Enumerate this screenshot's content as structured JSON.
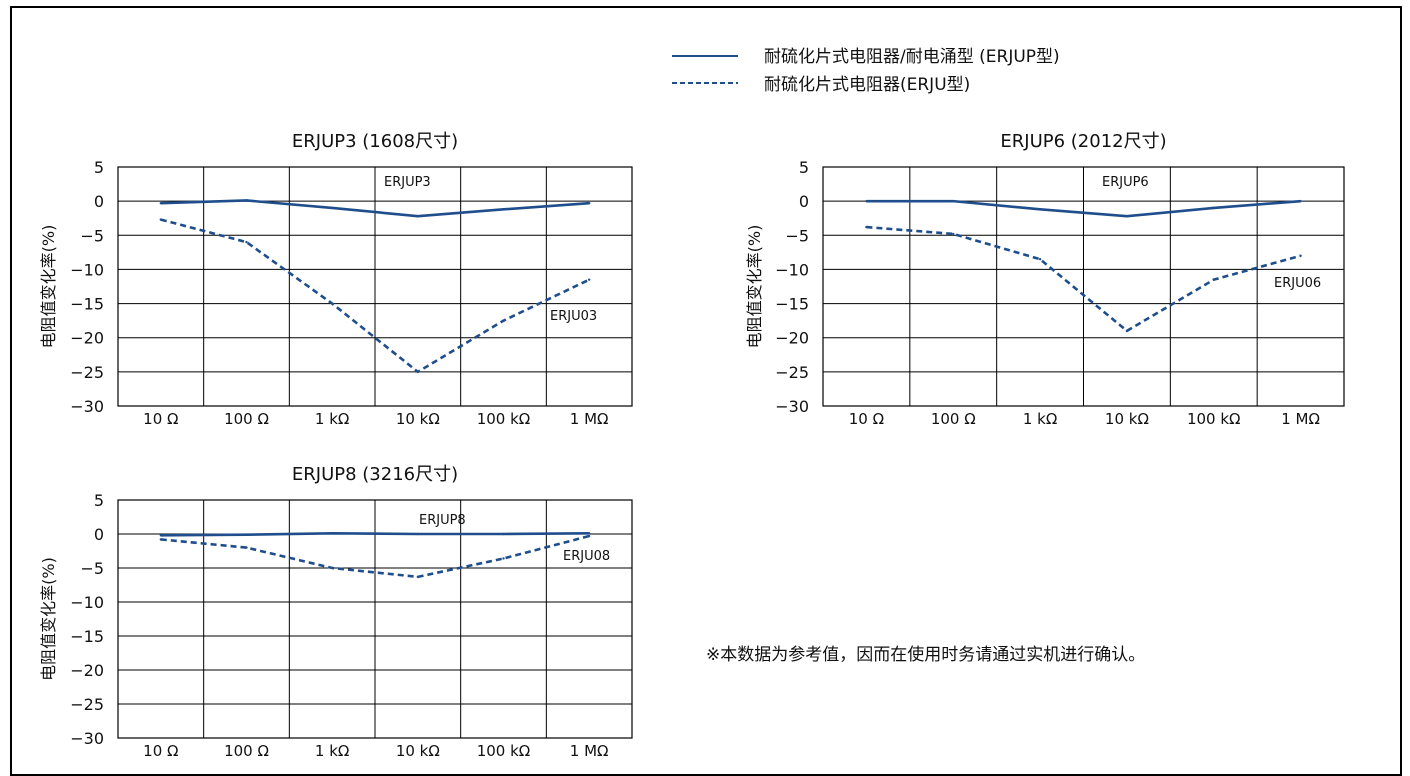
{
  "legend": {
    "solid_label": "耐硫化片式电阻器/耐电涌型 (ERJUP型)",
    "dashed_label": "耐硫化片式电阻器(ERJU型)"
  },
  "note": "※本数据为参考值，因而在使用时务请通过实机进行确认。",
  "colors": {
    "line": "#1f4e8c",
    "grid": "#000000"
  },
  "chart_data": [
    {
      "type": "line",
      "title": "ERJUP3 (1608尺寸)",
      "ylabel": "电阻值变化率(%)",
      "xlabel": "",
      "categories": [
        "10 Ω",
        "100 Ω",
        "1 kΩ",
        "10 kΩ",
        "100 kΩ",
        "1 MΩ"
      ],
      "yticks": [
        "5",
        "0",
        "−5",
        "−10",
        "−15",
        "−20",
        "−25",
        "−30"
      ],
      "ylim": [
        -30,
        5
      ],
      "series": [
        {
          "name": "ERJUP3",
          "style": "solid",
          "values": [
            -0.3,
            0.1,
            -1.0,
            -2.2,
            -1.2,
            -0.3
          ]
        },
        {
          "name": "ERJU03",
          "style": "dashed",
          "values": [
            -2.7,
            -6.0,
            -15.0,
            -25.0,
            -17.5,
            -11.5
          ]
        }
      ]
    },
    {
      "type": "line",
      "title": "ERJUP6 (2012尺寸)",
      "ylabel": "电阻值变化率(%)",
      "xlabel": "",
      "categories": [
        "10 Ω",
        "100 Ω",
        "1 kΩ",
        "10 kΩ",
        "100 kΩ",
        "1 MΩ"
      ],
      "yticks": [
        "5",
        "0",
        "−5",
        "−10",
        "−15",
        "−20",
        "−25",
        "−30"
      ],
      "ylim": [
        -30,
        5
      ],
      "series": [
        {
          "name": "ERJUP6",
          "style": "solid",
          "values": [
            0.0,
            0.0,
            -1.2,
            -2.2,
            -1.0,
            0.0
          ]
        },
        {
          "name": "ERJU06",
          "style": "dashed",
          "values": [
            -3.8,
            -4.8,
            -8.5,
            -19.0,
            -11.5,
            -8.0
          ]
        }
      ]
    },
    {
      "type": "line",
      "title": "ERJUP8 (3216尺寸)",
      "ylabel": "电阻值变化率(%)",
      "xlabel": "",
      "categories": [
        "10 Ω",
        "100 Ω",
        "1 kΩ",
        "10 kΩ",
        "100 kΩ",
        "1 MΩ"
      ],
      "yticks": [
        "5",
        "0",
        "−5",
        "−10",
        "−15",
        "−20",
        "−25",
        "−30"
      ],
      "ylim": [
        -30,
        5
      ],
      "series": [
        {
          "name": "ERJUP8",
          "style": "solid",
          "values": [
            -0.2,
            -0.1,
            0.1,
            0.0,
            0.0,
            0.1
          ]
        },
        {
          "name": "ERJU08",
          "style": "dashed",
          "values": [
            -0.8,
            -2.0,
            -5.0,
            -6.3,
            -3.6,
            -0.3
          ]
        }
      ]
    }
  ]
}
